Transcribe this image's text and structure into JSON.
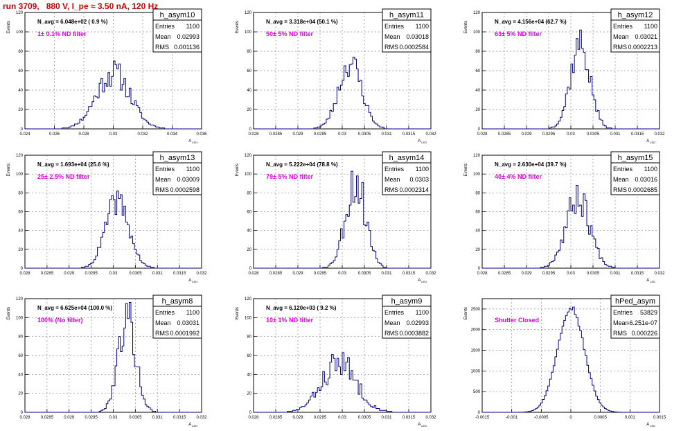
{
  "page_title": "run 3709,   880 V, I_pe ≈ 3.50 nA, 120 Hz",
  "stats_labels": [
    "Entries",
    "Mean",
    "RMS"
  ],
  "y_axis_label": "Events",
  "x_axis_label": "A",
  "x_axis_label_sub": "LED",
  "chart_data": [
    {
      "type": "histogram",
      "hist_name": "h_asym10",
      "navg": "N_avg = 6.048e+02 ( 0.9 %)",
      "filter": "1± 0.1% ND filter",
      "entries": "1100",
      "mean": "0.02993",
      "rms": "0.001136",
      "xlim": [
        0.024,
        0.036
      ],
      "ylim": [
        0,
        120
      ],
      "xticks": [
        "0.024",
        "0.026",
        "0.028",
        "0.03",
        "0.032",
        "0.034",
        "0.036"
      ],
      "yticks": [
        "0",
        "20",
        "40",
        "60",
        "80",
        "100",
        "120"
      ],
      "x_center": 0.03,
      "sigma": 0.00114,
      "peak": 58,
      "seed": 11,
      "noise": 0.25
    },
    {
      "type": "histogram",
      "hist_name": "h_asym11",
      "navg": "N_avg = 3.318e+04 (50.1 %)",
      "filter": "50± 5% ND filter",
      "entries": "1100",
      "mean": "0.03018",
      "rms": "0.0002584",
      "xlim": [
        0.028,
        0.032
      ],
      "ylim": [
        0,
        120
      ],
      "xticks": [
        "0.028",
        "0.0285",
        "0.029",
        "0.0295",
        "0.03",
        "0.0305",
        "0.031",
        "0.0315",
        "0.032"
      ],
      "yticks": [
        "0",
        "20",
        "40",
        "60",
        "80",
        "100",
        "120"
      ],
      "x_center": 0.03018,
      "sigma": 0.00026,
      "peak": 68,
      "seed": 23,
      "noise": 0.22
    },
    {
      "type": "histogram",
      "hist_name": "h_asym12",
      "navg": "N_avg = 4.156e+04 (62.7 %)",
      "filter": "63± 5% ND filter",
      "entries": "1100",
      "mean": "0.03021",
      "rms": "0.0002213",
      "xlim": [
        0.028,
        0.032
      ],
      "ylim": [
        0,
        120
      ],
      "xticks": [
        "0.028",
        "0.0285",
        "0.029",
        "0.0295",
        "0.03",
        "0.0305",
        "0.031",
        "0.0315",
        "0.032"
      ],
      "yticks": [
        "0",
        "20",
        "40",
        "60",
        "80",
        "100",
        "120"
      ],
      "x_center": 0.03021,
      "sigma": 0.00022,
      "peak": 88,
      "seed": 37,
      "noise": 0.22
    },
    {
      "type": "histogram",
      "hist_name": "h_asym13",
      "navg": "N_avg = 1.693e+04 (25.6 %)",
      "filter": "25± 2.5% ND filter",
      "entries": "1100",
      "mean": "0.03009",
      "rms": "0.0002598",
      "xlim": [
        0.028,
        0.032
      ],
      "ylim": [
        0,
        120
      ],
      "xticks": [
        "0.028",
        "0.0285",
        "0.029",
        "0.0295",
        "0.03",
        "0.0305",
        "0.031",
        "0.0315",
        "0.032"
      ],
      "yticks": [
        "0",
        "20",
        "40",
        "60",
        "80",
        "100",
        "120"
      ],
      "x_center": 0.03009,
      "sigma": 0.00026,
      "peak": 72,
      "seed": 41,
      "noise": 0.2
    },
    {
      "type": "histogram",
      "hist_name": "h_asym14",
      "navg": "N_avg = 5.222e+04 (78.8 %)",
      "filter": "79± 5% ND filter",
      "entries": "1100",
      "mean": "0.0303",
      "rms": "0.0002314",
      "xlim": [
        0.028,
        0.032
      ],
      "ylim": [
        0,
        120
      ],
      "xticks": [
        "0.028",
        "0.0285",
        "0.029",
        "0.0295",
        "0.03",
        "0.0305",
        "0.031",
        "0.0315",
        "0.032"
      ],
      "yticks": [
        "0",
        "20",
        "40",
        "60",
        "80",
        "100",
        "120"
      ],
      "x_center": 0.0303,
      "sigma": 0.00023,
      "peak": 92,
      "seed": 53,
      "noise": 0.3
    },
    {
      "type": "histogram",
      "hist_name": "h_asym15",
      "navg": "N_avg = 2.630e+04 (39.7 %)",
      "filter": "40± 4% ND filter",
      "entries": "1100",
      "mean": "0.03016",
      "rms": "0.0002685",
      "xlim": [
        0.028,
        0.032
      ],
      "ylim": [
        0,
        120
      ],
      "xticks": [
        "0.028",
        "0.0285",
        "0.029",
        "0.0295",
        "0.03",
        "0.0305",
        "0.031",
        "0.0315",
        "0.032"
      ],
      "yticks": [
        "0",
        "20",
        "40",
        "60",
        "80",
        "100",
        "120"
      ],
      "x_center": 0.03016,
      "sigma": 0.00027,
      "peak": 76,
      "seed": 67,
      "noise": 0.25
    },
    {
      "type": "histogram",
      "hist_name": "h_asym8",
      "navg": "N_avg = 6.625e+04 (100.0 %)",
      "filter": "100% (No filter)",
      "entries": "1100",
      "mean": "0.03031",
      "rms": "0.0001992",
      "xlim": [
        0.028,
        0.032
      ],
      "ylim": [
        0,
        120
      ],
      "xticks": [
        "0.028",
        "0.0285",
        "0.029",
        "0.0295",
        "0.03",
        "0.0305",
        "0.031",
        "0.0315",
        "0.032"
      ],
      "yticks": [
        "0",
        "20",
        "40",
        "60",
        "80",
        "100",
        "120"
      ],
      "x_center": 0.03031,
      "sigma": 0.0002,
      "peak": 100,
      "seed": 79,
      "noise": 0.25
    },
    {
      "type": "histogram",
      "hist_name": "h_asym9",
      "navg": "N_avg = 6.120e+03 ( 9.2 %)",
      "filter": "10± 1% ND filter",
      "entries": "1100",
      "mean": "0.02993",
      "rms": "0.0003882",
      "xlim": [
        0.028,
        0.032
      ],
      "ylim": [
        0,
        120
      ],
      "xticks": [
        "0.028",
        "0.0285",
        "0.029",
        "0.0295",
        "0.03",
        "0.0305",
        "0.031",
        "0.0315",
        "0.032"
      ],
      "yticks": [
        "0",
        "20",
        "40",
        "60",
        "80",
        "100",
        "120"
      ],
      "x_center": 0.02993,
      "sigma": 0.00039,
      "peak": 52,
      "seed": 83,
      "noise": 0.3
    },
    {
      "type": "histogram",
      "hist_name": "hPed_asym",
      "navg": "",
      "filter": "Shutter Closed",
      "entries": "53829",
      "mean": "-6.251e-07",
      "rms": "0.000226",
      "xlim": [
        -0.0015,
        0.0015
      ],
      "ylim": [
        0,
        2750
      ],
      "xticks": [
        "-0.0015",
        "-0.001",
        "-0.0005",
        "0",
        "0.0005",
        "0.001",
        "0.0015"
      ],
      "yticks": [
        "0",
        "500",
        "1000",
        "1500",
        "2000",
        "2500"
      ],
      "x_center": 0.0,
      "sigma": 0.000226,
      "peak": 2550,
      "seed": 97,
      "noise": 0.03
    }
  ]
}
